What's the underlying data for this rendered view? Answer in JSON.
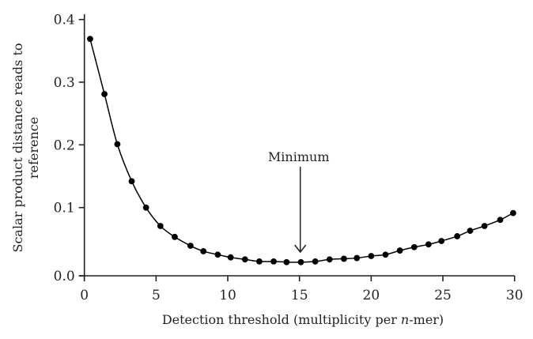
{
  "chart_data": {
    "type": "line",
    "title": "",
    "xlabel": "Detection threshold (multiplicity per n-mer)",
    "xlabel_parts": [
      "Detection threshold (multiplicity per ",
      "n",
      "-mer)"
    ],
    "ylabel": "Scalar product distance reads to reference",
    "ylabel_lines": [
      "Scalar product distance reads to",
      "reference"
    ],
    "xlim": [
      0,
      30
    ],
    "ylim": [
      0.0,
      0.4
    ],
    "xticks": [
      0,
      5,
      10,
      15,
      20,
      25,
      30
    ],
    "xtick_labels": [
      "0",
      "5",
      "10",
      "15",
      "20",
      "25",
      "30"
    ],
    "yticks": [
      0.0,
      0.1,
      0.2,
      0.3,
      0.4
    ],
    "ytick_labels": [
      "0.0",
      "0.1",
      "0.2",
      "0.3",
      "0.4"
    ],
    "grid": false,
    "legend": null,
    "marker": "filled-circle",
    "series": [
      {
        "name": "distance",
        "color": "#000000",
        "x": [
          0.4,
          1.4,
          2.3,
          3.3,
          4.3,
          5.3,
          6.3,
          7.4,
          8.3,
          9.3,
          10.2,
          11.2,
          12.2,
          13.2,
          14.1,
          15.1,
          16.1,
          17.1,
          18.1,
          19.0,
          20.0,
          21.0,
          22.0,
          23.0,
          24.0,
          24.9,
          26.0,
          26.9,
          27.9,
          29.0,
          29.9
        ],
        "values": [
          0.369,
          0.281,
          0.201,
          0.142,
          0.1,
          0.073,
          0.057,
          0.044,
          0.036,
          0.031,
          0.027,
          0.024,
          0.021,
          0.021,
          0.02,
          0.02,
          0.021,
          0.024,
          0.025,
          0.026,
          0.029,
          0.031,
          0.037,
          0.042,
          0.046,
          0.051,
          0.058,
          0.066,
          0.073,
          0.082,
          0.092
        ]
      }
    ],
    "annotations": [
      {
        "text": "Minimum",
        "arrow_x": 15.1,
        "arrow_tip_y": 0.03,
        "type": "arrow-down"
      }
    ]
  },
  "colors": {
    "axis": "#231f20",
    "series": "#000000",
    "background": "#ffffff"
  }
}
